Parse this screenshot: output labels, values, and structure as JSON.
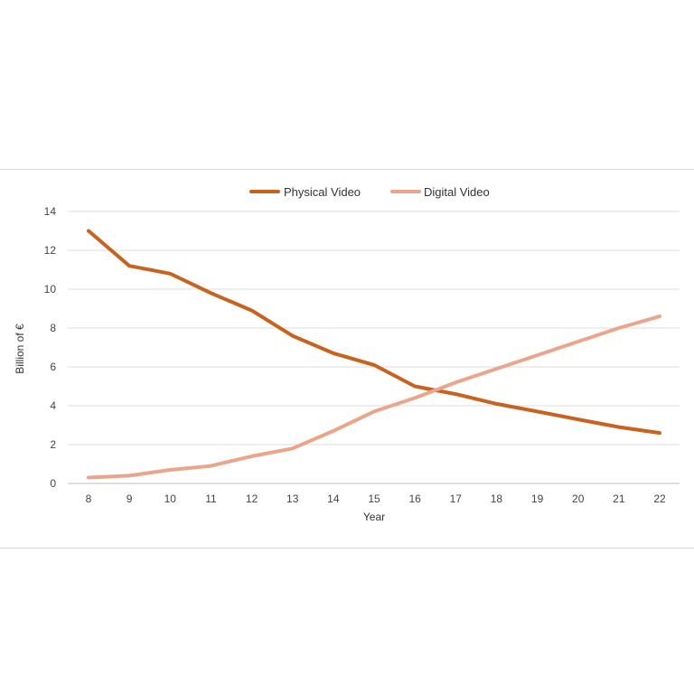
{
  "chart_data": {
    "type": "line",
    "title": "",
    "xlabel": "Year",
    "ylabel": "Billion of €",
    "x": [
      8,
      9,
      10,
      11,
      12,
      13,
      14,
      15,
      16,
      17,
      18,
      19,
      20,
      21,
      22
    ],
    "ylim": [
      0,
      14
    ],
    "yticks": [
      0,
      2,
      4,
      6,
      8,
      10,
      12,
      14
    ],
    "grid": true,
    "legend_position": "top",
    "series": [
      {
        "name": "Physical Video",
        "color": "#c8621e",
        "values": [
          13.0,
          11.2,
          10.8,
          9.8,
          8.9,
          7.6,
          6.7,
          6.1,
          5.0,
          4.6,
          4.1,
          3.7,
          3.3,
          2.9,
          2.6
        ]
      },
      {
        "name": "Digital Video",
        "color": "#eba58a",
        "values": [
          0.3,
          0.4,
          0.7,
          0.9,
          1.4,
          1.8,
          2.7,
          3.7,
          4.4,
          5.2,
          5.9,
          6.6,
          7.3,
          8.0,
          8.6
        ]
      }
    ]
  }
}
